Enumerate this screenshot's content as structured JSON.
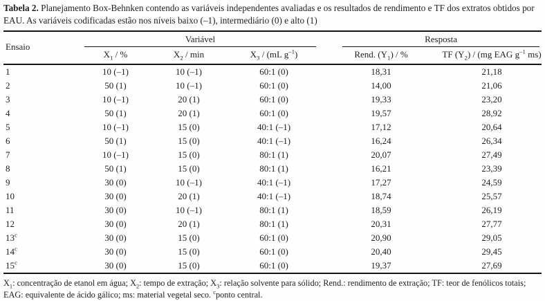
{
  "colors": {
    "text": "#1f1f1f",
    "rule": "#141414",
    "background": "#fefefe"
  },
  "caption": {
    "label": "Tabela 2.",
    "text": "Planejamento Box-Behnken contendo as variáveis independentes avaliadas e os resultados de rendimento e TF dos extratos obtidos por EAU. As variáveis codificadas estão nos níveis baixo (–1), intermediário (0) e alto (1)"
  },
  "table": {
    "row_header": "Ensaio",
    "groups": {
      "variavel": "Variável",
      "resposta": "Resposta"
    },
    "columns": [
      "X~1~ / %",
      "X~2~ / min",
      "X~3~ / (mL g^–1^)",
      "Rend. (Y~1~) / %",
      "TF (Y~2~) / (mg EAG g^–1^ ms)"
    ],
    "rows": [
      [
        "1",
        "10 (–1)",
        "10 (–1)",
        "60:1 (0)",
        "18,31",
        "21,18"
      ],
      [
        "2",
        "50 (1)",
        "10 (–1)",
        "60:1 (0)",
        "14,00",
        "21,06"
      ],
      [
        "3",
        "10 (–1)",
        "20 (1)",
        "60:1 (0)",
        "19,33",
        "23,20"
      ],
      [
        "4",
        "50 (1)",
        "20 (1)",
        "60:1 (0)",
        "19,57",
        "28,92"
      ],
      [
        "5",
        "10 (–1)",
        "15 (0)",
        "40:1 (–1)",
        "17,12",
        "20,64"
      ],
      [
        "6",
        "50 (1)",
        "15 (0)",
        "40:1 (–1)",
        "16,24",
        "26,34"
      ],
      [
        "7",
        "10 (–1)",
        "15 (0)",
        "80:1 (1)",
        "20,07",
        "27,49"
      ],
      [
        "8",
        "50 (1)",
        "15 (0)",
        "80:1 (1)",
        "16,21",
        "23,39"
      ],
      [
        "9",
        "30 (0)",
        "10 (–1)",
        "40:1 (–1)",
        "17,27",
        "24,59"
      ],
      [
        "10",
        "30 (0)",
        "20 (1)",
        "40:1 (–1)",
        "18,74",
        "25,57"
      ],
      [
        "11",
        "30 (0)",
        "10 (–1)",
        "80:1 (1)",
        "18,59",
        "26,19"
      ],
      [
        "12",
        "30 (0)",
        "20 (1)",
        "80:1 (1)",
        "20,31",
        "27,77"
      ],
      [
        "13^c^",
        "30 (0)",
        "15 (0)",
        "60:1 (0)",
        "20,90",
        "29,05"
      ],
      [
        "14^c^",
        "30 (0)",
        "15 (0)",
        "60:1 (0)",
        "20,40",
        "29,45"
      ],
      [
        "15^c^",
        "30 (0)",
        "15 (0)",
        "60:1 (0)",
        "19,37",
        "27,69"
      ]
    ]
  },
  "footnote": "X~1~: concentração de etanol em água; X~2~: tempo de extração; X~3~: relação solvente para sólido; Rend.: rendimento de extração; TF: teor de fenólicos totais; EAG: equivalente de ácido gálico; ms: material vegetal seco. ^c^ponto central."
}
